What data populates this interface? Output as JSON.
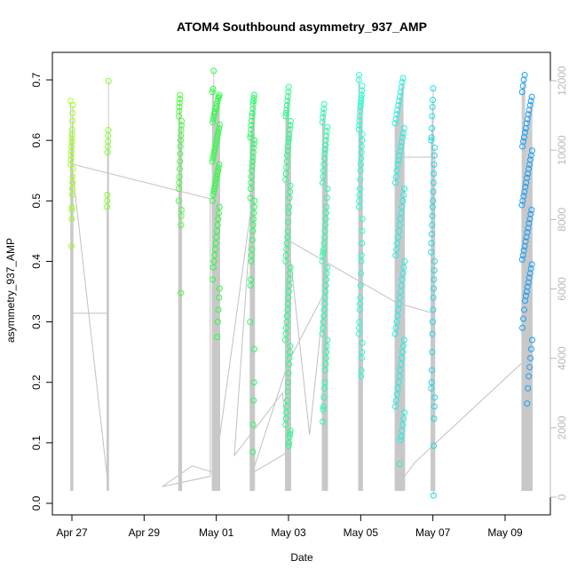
{
  "chart_data": {
    "type": "scatter",
    "title": "ATOM4 Southbound asymmetry_937_AMP",
    "xlabel": "Date",
    "ylabel": "asymmetry_937_AMP",
    "xlim": [
      "2024-04-26T20:00",
      "2024-05-10T06:00"
    ],
    "ylim": [
      0,
      0.72
    ],
    "y2lim": [
      0,
      12400
    ],
    "x_ticks": [
      {
        "label": "Apr 27",
        "date": "2024-04-27"
      },
      {
        "label": "Apr 29",
        "date": "2024-04-29"
      },
      {
        "label": "May 01",
        "date": "2024-05-01"
      },
      {
        "label": "May 03",
        "date": "2024-05-03"
      },
      {
        "label": "May 05",
        "date": "2024-05-05"
      },
      {
        "label": "May 07",
        "date": "2024-05-07"
      },
      {
        "label": "May 09",
        "date": "2024-05-09"
      }
    ],
    "y_ticks": [
      "0.0",
      "0.1",
      "0.2",
      "0.3",
      "0.4",
      "0.5",
      "0.6",
      "0.7"
    ],
    "y2_ticks": [
      "0",
      "2000",
      "4000",
      "6000",
      "8000",
      "10000",
      "12000"
    ],
    "grid": false,
    "series": [
      {
        "marker": "open-circle",
        "color_gradient": [
          "#a0ff20",
          "#20ff40",
          "#20ffe0",
          "#10a0ff"
        ],
        "clusters": [
          {
            "date": "2024-04-27T00:00",
            "spread_hours": 1.5,
            "values": [
              0.665,
              0.658,
              0.645,
              0.632,
              0.618,
              0.61,
              0.603,
              0.597,
              0.59,
              0.582,
              0.575,
              0.568,
              0.56,
              0.553,
              0.54,
              0.53,
              0.52,
              0.51,
              0.49,
              0.485,
              0.47,
              0.425
            ]
          },
          {
            "date": "2024-04-28T00:00",
            "spread_hours": 1.5,
            "values": [
              0.698,
              0.617,
              0.608,
              0.598,
              0.59,
              0.58,
              0.51,
              0.5,
              0.49
            ]
          },
          {
            "date": "2024-04-30T00:00",
            "spread_hours": 2.0,
            "values": [
              0.675,
              0.668,
              0.662,
              0.655,
              0.648,
              0.64,
              0.632,
              0.625,
              0.617,
              0.608,
              0.6,
              0.59,
              0.578,
              0.565,
              0.553,
              0.54,
              0.53,
              0.52,
              0.5,
              0.485,
              0.475,
              0.46,
              0.348
            ]
          },
          {
            "date": "2024-04-30T23:50",
            "spread_hours": 5.0,
            "values": [
              0.715,
              0.685,
              0.68,
              0.675,
              0.672,
              0.67,
              0.665,
              0.66,
              0.655,
              0.652,
              0.648,
              0.645,
              0.64,
              0.635,
              0.63,
              0.626,
              0.62,
              0.615,
              0.61,
              0.605,
              0.6,
              0.595,
              0.59,
              0.585,
              0.58,
              0.575,
              0.57,
              0.565,
              0.56,
              0.555,
              0.55,
              0.545,
              0.54,
              0.535,
              0.53,
              0.525,
              0.52,
              0.515,
              0.51,
              0.5,
              0.49,
              0.48,
              0.47,
              0.46,
              0.45,
              0.44,
              0.43,
              0.42,
              0.41,
              0.4,
              0.39,
              0.37,
              0.355,
              0.34,
              0.32,
              0.3,
              0.275
            ]
          },
          {
            "date": "2024-05-02T00:00",
            "spread_hours": 3.0,
            "values": [
              0.675,
              0.67,
              0.665,
              0.66,
              0.652,
              0.645,
              0.64,
              0.632,
              0.625,
              0.618,
              0.61,
              0.605,
              0.6,
              0.594,
              0.588,
              0.58,
              0.572,
              0.565,
              0.558,
              0.55,
              0.54,
              0.53,
              0.52,
              0.505,
              0.5,
              0.49,
              0.48,
              0.47,
              0.46,
              0.45,
              0.435,
              0.42,
              0.41,
              0.4,
              0.37,
              0.36,
              0.3,
              0.255,
              0.2,
              0.17,
              0.13,
              0.085
            ]
          },
          {
            "date": "2024-05-02T23:40",
            "spread_hours": 3.5,
            "values": [
              0.688,
              0.68,
              0.672,
              0.665,
              0.658,
              0.65,
              0.645,
              0.64,
              0.632,
              0.625,
              0.618,
              0.61,
              0.603,
              0.598,
              0.59,
              0.583,
              0.575,
              0.565,
              0.555,
              0.545,
              0.535,
              0.525,
              0.515,
              0.505,
              0.49,
              0.48,
              0.465,
              0.45,
              0.44,
              0.43,
              0.42,
              0.41,
              0.4,
              0.39,
              0.38,
              0.37,
              0.36,
              0.35,
              0.34,
              0.33,
              0.32,
              0.31,
              0.3,
              0.29,
              0.28,
              0.27,
              0.26,
              0.25,
              0.24,
              0.23,
              0.215,
              0.2,
              0.185,
              0.17,
              0.16,
              0.15,
              0.14,
              0.13,
              0.12,
              0.115,
              0.11,
              0.1,
              0.095
            ]
          },
          {
            "date": "2024-05-04T00:10",
            "spread_hours": 3.5,
            "values": [
              0.66,
              0.652,
              0.645,
              0.638,
              0.63,
              0.622,
              0.615,
              0.607,
              0.6,
              0.592,
              0.585,
              0.578,
              0.57,
              0.56,
              0.55,
              0.54,
              0.53,
              0.52,
              0.505,
              0.49,
              0.48,
              0.47,
              0.46,
              0.45,
              0.44,
              0.43,
              0.42,
              0.415,
              0.41,
              0.4,
              0.39,
              0.38,
              0.37,
              0.36,
              0.35,
              0.34,
              0.33,
              0.32,
              0.31,
              0.3,
              0.29,
              0.28,
              0.27,
              0.26,
              0.25,
              0.24,
              0.23,
              0.22,
              0.2,
              0.19,
              0.175,
              0.16,
              0.155,
              0.135
            ]
          },
          {
            "date": "2024-05-04T23:55",
            "spread_hours": 2.5,
            "values": [
              0.708,
              0.7,
              0.69,
              0.682,
              0.675,
              0.67,
              0.665,
              0.66,
              0.655,
              0.648,
              0.64,
              0.632,
              0.625,
              0.618,
              0.61,
              0.6,
              0.59,
              0.58,
              0.57,
              0.56,
              0.55,
              0.535,
              0.52,
              0.51,
              0.5,
              0.49,
              0.47,
              0.45,
              0.43,
              0.41,
              0.4,
              0.38,
              0.36,
              0.34,
              0.33,
              0.32,
              0.3,
              0.29,
              0.28,
              0.265,
              0.25,
              0.24,
              0.22,
              0.21
            ]
          },
          {
            "date": "2024-05-06T02:00",
            "spread_hours": 6.5,
            "values": [
              0.703,
              0.696,
              0.688,
              0.68,
              0.672,
              0.665,
              0.658,
              0.65,
              0.643,
              0.635,
              0.628,
              0.62,
              0.612,
              0.605,
              0.597,
              0.59,
              0.582,
              0.575,
              0.567,
              0.56,
              0.55,
              0.54,
              0.53,
              0.52,
              0.51,
              0.5,
              0.49,
              0.48,
              0.47,
              0.46,
              0.45,
              0.44,
              0.43,
              0.42,
              0.41,
              0.4,
              0.39,
              0.38,
              0.37,
              0.36,
              0.35,
              0.34,
              0.33,
              0.32,
              0.31,
              0.3,
              0.29,
              0.28,
              0.27,
              0.26,
              0.25,
              0.24,
              0.23,
              0.22,
              0.21,
              0.2,
              0.19,
              0.18,
              0.17,
              0.16,
              0.15,
              0.14,
              0.13,
              0.12,
              0.11,
              0.105,
              0.065
            ]
          },
          {
            "date": "2024-05-07T00:00",
            "spread_hours": 2.5,
            "values": [
              0.686,
              0.667,
              0.655,
              0.64,
              0.62,
              0.605,
              0.6,
              0.588,
              0.575,
              0.56,
              0.545,
              0.53,
              0.515,
              0.5,
              0.49,
              0.475,
              0.46,
              0.445,
              0.43,
              0.415,
              0.4,
              0.385,
              0.37,
              0.355,
              0.34,
              0.32,
              0.3,
              0.28,
              0.25,
              0.22,
              0.2,
              0.19,
              0.175,
              0.16,
              0.14,
              0.095,
              0.013
            ]
          },
          {
            "date": "2024-05-09T14:30",
            "spread_hours": 7.0,
            "values": [
              0.708,
              0.7,
              0.69,
              0.68,
              0.672,
              0.665,
              0.658,
              0.65,
              0.643,
              0.635,
              0.628,
              0.62,
              0.613,
              0.605,
              0.598,
              0.59,
              0.583,
              0.575,
              0.568,
              0.56,
              0.553,
              0.545,
              0.538,
              0.53,
              0.523,
              0.515,
              0.508,
              0.5,
              0.493,
              0.485,
              0.478,
              0.47,
              0.463,
              0.455,
              0.448,
              0.44,
              0.433,
              0.425,
              0.418,
              0.41,
              0.403,
              0.395,
              0.388,
              0.38,
              0.373,
              0.365,
              0.358,
              0.35,
              0.343,
              0.335,
              0.32,
              0.305,
              0.29,
              0.27,
              0.255,
              0.24,
              0.225,
              0.21,
              0.19,
              0.165
            ]
          }
        ]
      },
      {
        "name_axis": "right",
        "color": "#c0c0c0",
        "line_path": [
          [
            "2024-04-27T00:00",
            500
          ],
          [
            "2024-04-27T00:00",
            5300
          ],
          [
            "2024-04-28T00:00",
            5300
          ],
          [
            "2024-04-28T00:00",
            350
          ],
          [
            "2024-04-27T00:00",
            9600
          ],
          [
            "2024-04-30T20:00",
            8600
          ],
          [
            "2024-04-30T20:00",
            600
          ],
          [
            "2024-04-29T12:00",
            300
          ],
          [
            "2024-04-30T08:00",
            900
          ],
          [
            "2024-04-30T23:00",
            700
          ],
          [
            "2024-05-02T00:00",
            8600
          ],
          [
            "2024-05-01T12:00",
            1200
          ],
          [
            "2024-05-02T20:00",
            3000
          ],
          [
            "2024-05-02T23:40",
            1300
          ],
          [
            "2024-05-02T00:00",
            700
          ],
          [
            "2024-05-03T00:00",
            3900
          ],
          [
            "2024-05-04T00:00",
            5900
          ],
          [
            "2024-05-03T14:00",
            1800
          ],
          [
            "2024-05-03T00:00",
            7400
          ],
          [
            "2024-05-06T00:00",
            5600
          ],
          [
            "2024-05-07T00:00",
            5300
          ],
          [
            "2024-05-07T00:00",
            9800
          ],
          [
            "2024-05-06T00:00",
            9800
          ],
          [
            "2024-05-06T00:00",
            300
          ],
          [
            "2024-05-06T12:00",
            1000
          ],
          [
            "2024-05-09T14:30",
            4000
          ],
          [
            "2024-05-09T14:30",
            300
          ]
        ]
      }
    ]
  }
}
